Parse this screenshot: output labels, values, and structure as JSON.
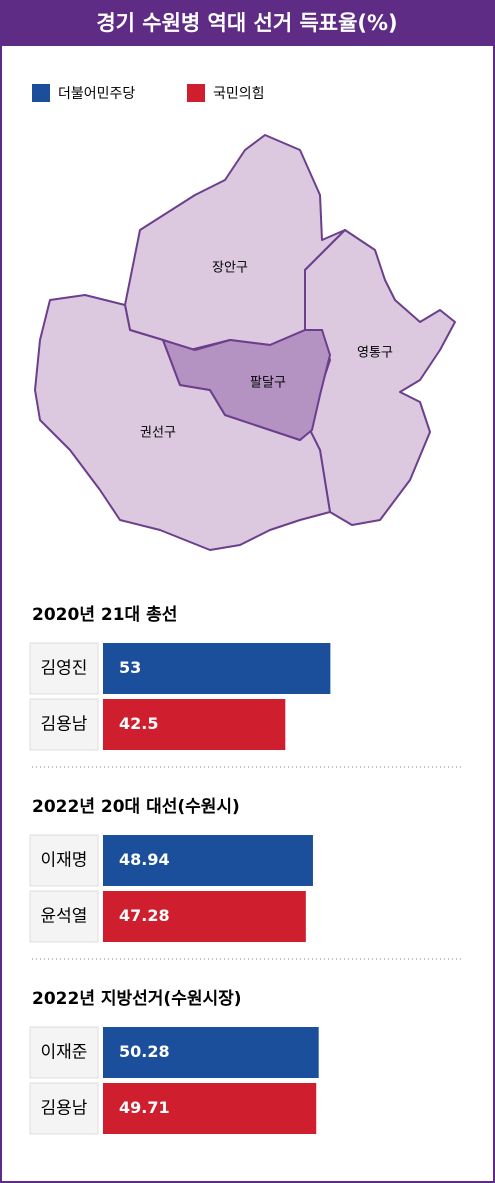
{
  "title": "경기 수원병 역대 선거 득표율(%)",
  "legend": [
    {
      "name": "더불어민주당",
      "color": "#1b4f9c"
    },
    {
      "name": "국민의힘",
      "color": "#cf1f2e"
    }
  ],
  "map": {
    "regions": [
      "장안구",
      "영통구",
      "권선구",
      "팔달구"
    ]
  },
  "chart_data": [
    {
      "type": "bar",
      "title": "2020년 21대 총선",
      "categories": [
        "김영진",
        "김용남"
      ],
      "values": [
        53,
        42.5
      ],
      "colors": [
        "#1b4f9c",
        "#cf1f2e"
      ]
    },
    {
      "type": "bar",
      "title": "2022년 20대 대선(수원시)",
      "categories": [
        "이재명",
        "윤석열"
      ],
      "values": [
        48.94,
        47.28
      ],
      "colors": [
        "#1b4f9c",
        "#cf1f2e"
      ]
    },
    {
      "type": "bar",
      "title": "2022년 지방선거(수원시장)",
      "categories": [
        "이재준",
        "김용남"
      ],
      "values": [
        50.28,
        49.71
      ],
      "colors": [
        "#1b4f9c",
        "#cf1f2e"
      ]
    }
  ]
}
